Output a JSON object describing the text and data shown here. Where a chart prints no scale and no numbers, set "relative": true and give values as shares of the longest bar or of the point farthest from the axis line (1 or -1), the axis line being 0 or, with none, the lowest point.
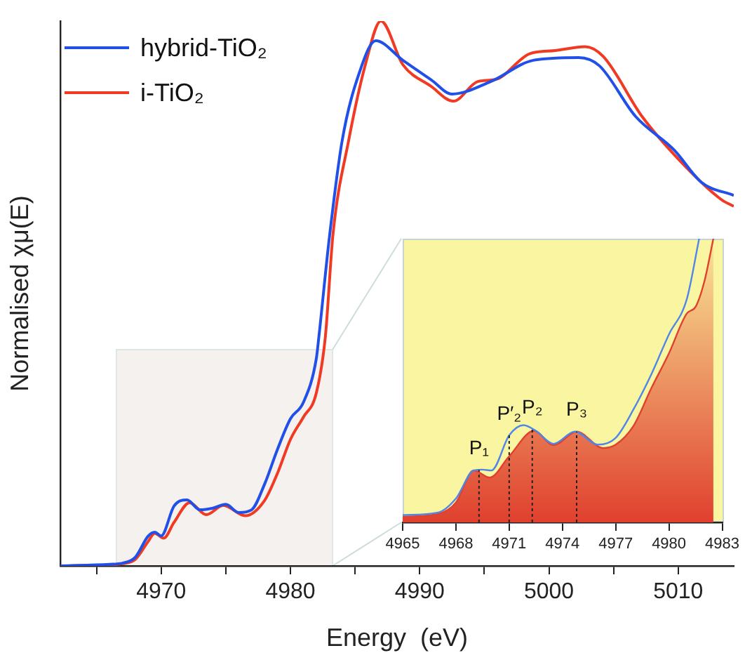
{
  "chart_data": [
    {
      "type": "line",
      "xlabel": "Energy  (eV)",
      "ylabel": "Normalised χμ(E)",
      "relative": true,
      "legend": "top left",
      "grid": false,
      "xlim": [
        4962.2,
        5014.3
      ],
      "xticks": [
        {
          "value": 4965,
          "label": null
        },
        4970,
        {
          "value": 4975,
          "label": null
        },
        4980,
        {
          "value": 4985,
          "label": null
        },
        4990,
        {
          "value": 4995,
          "label": null
        },
        5000,
        {
          "value": 5005,
          "label": null
        },
        5010
      ],
      "series": [
        {
          "name": "hybrid-TiO₂",
          "color": "#2150e8",
          "x": [
            4962.2,
            4966,
            4967,
            4968,
            4969,
            4969.5,
            4970,
            4971,
            4972,
            4973,
            4974,
            4975,
            4976,
            4977,
            4978,
            4979,
            4980,
            4981,
            4982,
            4982.2,
            4983,
            4984,
            4985.4,
            4986.6,
            4988.7,
            4990.9,
            4992.5,
            4995.5,
            4998.8,
            5002.3,
            5003.9,
            5006.7,
            5009.7,
            5011.8,
            5014.3
          ],
          "values": [
            0,
            0.003,
            0.005,
            0.016,
            0.055,
            0.062,
            0.055,
            0.11,
            0.121,
            0.103,
            0.106,
            0.113,
            0.098,
            0.103,
            0.15,
            0.214,
            0.27,
            0.3,
            0.38,
            0.42,
            0.6,
            0.78,
            0.91,
            0.964,
            0.928,
            0.892,
            0.866,
            0.889,
            0.928,
            0.933,
            0.918,
            0.825,
            0.763,
            0.704,
            0.68
          ]
        },
        {
          "name": "i-TiO₂",
          "color": "#f03a24",
          "x": [
            4962.2,
            4966,
            4967,
            4968,
            4969,
            4969.5,
            4970.2,
            4971,
            4972.2,
            4973.5,
            4974.8,
            4976.5,
            4978,
            4979,
            4980,
            4981,
            4982,
            4982.7,
            4983.3,
            4984.5,
            4985.8,
            4987,
            4988.7,
            4990.9,
            4992.6,
            4994.5,
            4995.9,
            4998.5,
            5000.5,
            5002.8,
            5004.2,
            5007.2,
            5010,
            5013.3,
            5014.3
          ],
          "values": [
            0,
            0.002,
            0.004,
            0.012,
            0.045,
            0.06,
            0.051,
            0.08,
            0.116,
            0.094,
            0.111,
            0.092,
            0.12,
            0.17,
            0.232,
            0.273,
            0.317,
            0.42,
            0.61,
            0.78,
            0.92,
            1,
            0.92,
            0.88,
            0.853,
            0.889,
            0.893,
            0.94,
            0.946,
            0.953,
            0.935,
            0.825,
            0.747,
            0.673,
            0.66
          ]
        }
      ]
    },
    {
      "type": "line",
      "relative": true,
      "grid": false,
      "xlim": [
        4965,
        4983
      ],
      "xticks": [
        4965,
        4968,
        4971,
        4974,
        4977,
        4980,
        4983
      ],
      "series": [
        {
          "color": "#4f86e8",
          "x": [
            4965,
            4967,
            4968,
            4969,
            4969.5,
            4970,
            4971,
            4971.8,
            4972.5,
            4973.5,
            4974.7,
            4976,
            4977,
            4978,
            4979,
            4980,
            4981,
            4981.7
          ],
          "values": [
            0.026,
            0.035,
            0.084,
            0.183,
            0.186,
            0.183,
            0.307,
            0.343,
            0.323,
            0.277,
            0.32,
            0.274,
            0.298,
            0.398,
            0.521,
            0.663,
            0.786,
            1
          ]
        },
        {
          "type": "area",
          "color": "#e0402e",
          "x": [
            4965,
            4967,
            4968,
            4969,
            4969.9,
            4971,
            4972.4,
            4973.5,
            4974.8,
            4976.3,
            4977,
            4978,
            4979,
            4980,
            4981,
            4981.5,
            4982,
            4982.5
          ],
          "values": [
            0.02,
            0.03,
            0.07,
            0.183,
            0.158,
            0.233,
            0.323,
            0.272,
            0.32,
            0.262,
            0.274,
            0.34,
            0.472,
            0.596,
            0.736,
            0.76,
            0.851,
            1
          ]
        }
      ],
      "ref_lines": [
        {
          "axis": "x",
          "value": 4969.3,
          "label": "P₁",
          "line_style": "dotted"
        },
        {
          "axis": "x",
          "value": 4971,
          "label": "P′₂",
          "line_style": "dotted"
        },
        {
          "axis": "x",
          "value": 4972.3,
          "label": "P₂",
          "line_style": "dotted"
        },
        {
          "axis": "x",
          "value": 4974.8,
          "label": "P₃",
          "line_style": "dotted"
        }
      ]
    }
  ]
}
